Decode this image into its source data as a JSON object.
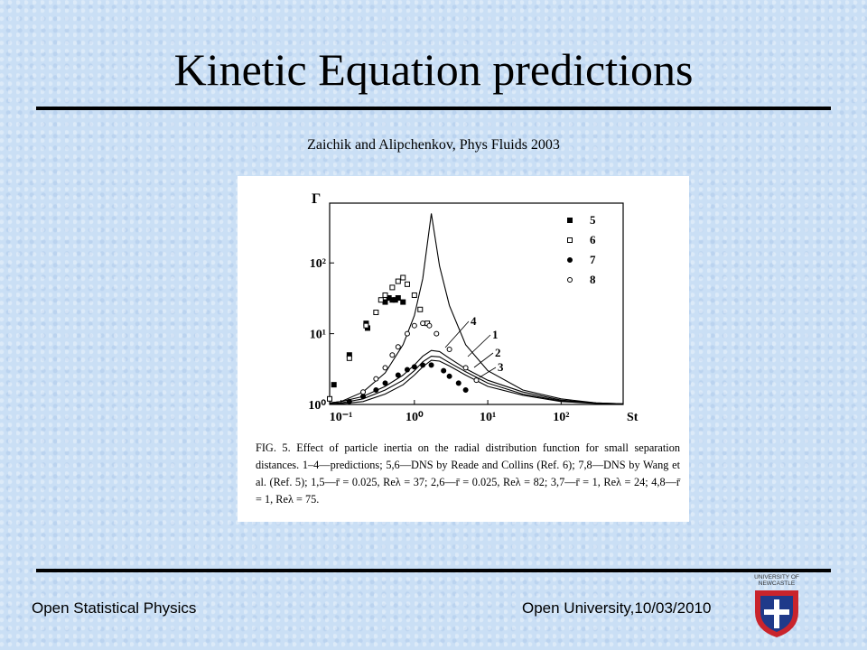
{
  "slide": {
    "title": "Kinetic Equation predictions",
    "subtitle": "Zaichik and Alipchenkov, Phys Fluids 2003",
    "footer_left": "Open Statistical Physics",
    "footer_right": "Open University,10/03/2010",
    "logo_text": [
      "UNIVERSITY OF",
      "NEWCASTLE"
    ]
  },
  "chart_data": {
    "type": "line",
    "xlabel": "St",
    "ylabel": "Γ",
    "log_x": true,
    "log_y": true,
    "xlim": [
      0.07,
      700
    ],
    "ylim": [
      1,
      700
    ],
    "xticks": [
      {
        "value": 0.1,
        "label": "10⁻¹"
      },
      {
        "value": 1,
        "label": "10⁰"
      },
      {
        "value": 10,
        "label": "10¹"
      },
      {
        "value": 100,
        "label": "10²"
      }
    ],
    "yticks": [
      {
        "value": 1,
        "label": "10⁰"
      },
      {
        "value": 10,
        "label": "10¹"
      },
      {
        "value": 100,
        "label": "10²"
      }
    ],
    "series": [
      {
        "name": "4",
        "mark": "line",
        "color": "#000000",
        "x": [
          0.07,
          0.1,
          0.2,
          0.4,
          0.7,
          1,
          1.3,
          1.7,
          2.2,
          3,
          5,
          10,
          30,
          100,
          300,
          700
        ],
        "values": [
          1.05,
          1.1,
          1.5,
          2.8,
          7,
          18,
          60,
          500,
          90,
          25,
          7,
          3,
          1.6,
          1.2,
          1.05,
          1.02
        ]
      },
      {
        "name": "1",
        "mark": "line",
        "color": "#000000",
        "x": [
          0.07,
          0.1,
          0.2,
          0.4,
          0.7,
          1,
          1.3,
          1.7,
          2.2,
          3,
          5,
          10,
          30,
          100,
          300,
          700
        ],
        "values": [
          1.05,
          1.1,
          1.3,
          1.8,
          2.6,
          3.6,
          4.8,
          5.8,
          5.6,
          4.5,
          3.2,
          2.2,
          1.5,
          1.15,
          1.05,
          1.02
        ]
      },
      {
        "name": "2",
        "mark": "line",
        "color": "#000000",
        "x": [
          0.07,
          0.1,
          0.2,
          0.4,
          0.7,
          1,
          1.3,
          1.7,
          2.2,
          3,
          5,
          10,
          30,
          100,
          300,
          700
        ],
        "values": [
          1.03,
          1.05,
          1.2,
          1.6,
          2.2,
          3,
          4,
          4.8,
          4.7,
          3.9,
          2.9,
          2,
          1.4,
          1.12,
          1.04,
          1.01
        ]
      },
      {
        "name": "3",
        "mark": "line",
        "color": "#000000",
        "x": [
          0.07,
          0.1,
          0.2,
          0.4,
          0.7,
          1,
          1.3,
          1.7,
          2.2,
          3,
          5,
          10,
          30,
          100,
          300,
          700
        ],
        "values": [
          1.01,
          1.02,
          1.1,
          1.4,
          1.9,
          2.6,
          3.4,
          4.2,
          4.1,
          3.5,
          2.6,
          1.8,
          1.35,
          1.1,
          1.03,
          1.01
        ]
      },
      {
        "name": "5",
        "mark": "filled-square",
        "color": "#000000",
        "x": [
          0.08,
          0.13,
          0.22,
          0.23,
          0.4,
          0.45,
          0.5,
          0.55,
          0.6,
          0.7
        ],
        "values": [
          1.9,
          5,
          14,
          12,
          28,
          32,
          30,
          30,
          32,
          28
        ]
      },
      {
        "name": "6",
        "mark": "open-square",
        "color": "#000000",
        "x": [
          0.07,
          0.13,
          0.22,
          0.3,
          0.35,
          0.4,
          0.5,
          0.6,
          0.7,
          0.8,
          1,
          1.2,
          1.5
        ],
        "values": [
          1.2,
          4.5,
          13,
          20,
          30,
          35,
          45,
          55,
          62,
          50,
          35,
          22,
          14
        ]
      },
      {
        "name": "7",
        "mark": "filled-circle",
        "color": "#000000",
        "x": [
          0.13,
          0.2,
          0.3,
          0.4,
          0.6,
          0.8,
          1,
          1.3,
          1.7,
          2.5,
          3,
          4,
          5
        ],
        "values": [
          1.1,
          1.3,
          1.6,
          2,
          2.6,
          3.1,
          3.4,
          3.6,
          3.6,
          3,
          2.5,
          2,
          1.6
        ]
      },
      {
        "name": "8",
        "mark": "open-circle",
        "color": "#000000",
        "x": [
          0.2,
          0.3,
          0.4,
          0.5,
          0.6,
          0.8,
          1,
          1.3,
          1.6,
          2,
          3,
          5,
          7
        ],
        "values": [
          1.5,
          2.3,
          3.3,
          5,
          6.5,
          10,
          13,
          14,
          13,
          10,
          6,
          3.3,
          2.2
        ]
      }
    ],
    "caption": "FIG. 5. Effect of particle inertia on the radial distribution function for small separation distances. 1–4—predictions; 5,6—DNS by Reade and Collins (Ref. 6); 7,8—DNS by Wang et al. (Ref. 5); 1,5—r̄ = 0.025, Reλ = 37; 2,6—r̄ = 0.025, Reλ = 82; 3,7—r̄ = 1, Reλ = 24; 4,8—r̄ = 1, Reλ = 75."
  }
}
